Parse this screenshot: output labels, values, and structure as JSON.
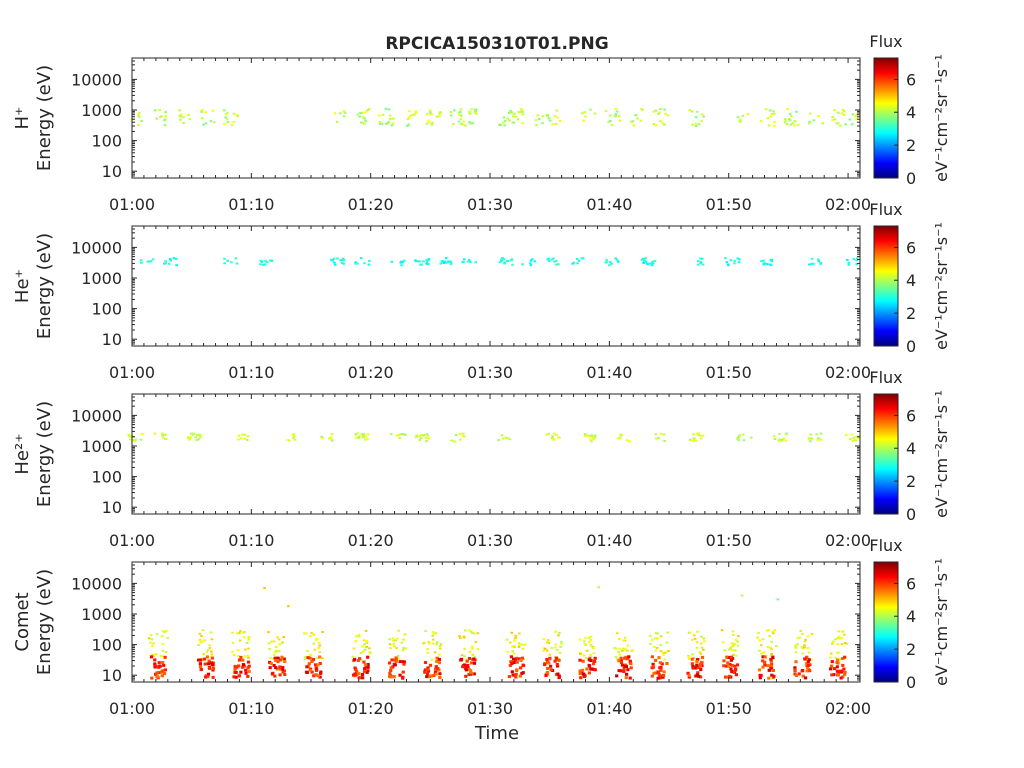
{
  "figure": {
    "title": "RPCICA150310T01.PNG",
    "xlabel": "Time"
  },
  "colorbar": {
    "label": "Flux",
    "units": "eV⁻¹cm⁻²sr⁻¹s⁻¹",
    "ticks": [
      "0",
      "2",
      "4",
      "6"
    ],
    "range": [
      0,
      7.3
    ],
    "colormap": "jet",
    "colors": [
      "#00007f",
      "#0000ff",
      "#007fff",
      "#00ffff",
      "#7fff7f",
      "#ffff00",
      "#ff7f00",
      "#ff0000",
      "#7f0000"
    ]
  },
  "chart_data": [
    {
      "type": "heatmap",
      "species": "H+",
      "ylabel_species": "H⁺",
      "ylabel": "Energy (eV)",
      "ylog": true,
      "ylim": [
        6,
        50000
      ],
      "yticks": [
        "10",
        "100",
        "1000",
        "10000"
      ],
      "xlim": [
        "01:00",
        "02:01"
      ],
      "xticks": [
        "01:00",
        "01:10",
        "01:20",
        "01:30",
        "01:40",
        "01:50",
        "02:00"
      ],
      "bands": [
        {
          "energy_range": [
            300,
            1100
          ],
          "flux_range": [
            3.6,
            4.6
          ],
          "times": [
            "01:00",
            "01:02",
            "01:04",
            "01:06",
            "01:08",
            "01:17",
            "01:19",
            "01:21",
            "01:23",
            "01:25",
            "01:27",
            "01:28",
            "01:31",
            "01:32",
            "01:34",
            "01:35",
            "01:38",
            "01:40",
            "01:42",
            "01:44",
            "01:47",
            "01:51",
            "01:53",
            "01:55",
            "01:57",
            "01:59",
            "02:00"
          ]
        }
      ]
    },
    {
      "type": "heatmap",
      "species": "He+",
      "ylabel_species": "He⁺",
      "ylabel": "Energy (eV)",
      "ylog": true,
      "ylim": [
        6,
        50000
      ],
      "yticks": [
        "10",
        "100",
        "1000",
        "10000"
      ],
      "xlim": [
        "01:00",
        "02:01"
      ],
      "xticks": [
        "01:00",
        "01:10",
        "01:20",
        "01:30",
        "01:40",
        "01:50",
        "02:00"
      ],
      "bands": [
        {
          "energy_range": [
            2600,
            4500
          ],
          "flux_range": [
            2.6,
            3.2
          ],
          "times": [
            "01:01",
            "01:03",
            "01:08",
            "01:11",
            "01:17",
            "01:19",
            "01:22",
            "01:24",
            "01:26",
            "01:28",
            "01:31",
            "01:33",
            "01:35",
            "01:37",
            "01:40",
            "01:43",
            "01:47",
            "01:50",
            "01:53",
            "01:57",
            "02:00"
          ]
        }
      ]
    },
    {
      "type": "heatmap",
      "species": "He2+",
      "ylabel_species": "He²⁺",
      "ylabel": "Energy (eV)",
      "ylog": true,
      "ylim": [
        6,
        50000
      ],
      "yticks": [
        "10",
        "100",
        "1000",
        "10000"
      ],
      "xlim": [
        "01:00",
        "02:01"
      ],
      "xticks": [
        "01:00",
        "01:10",
        "01:20",
        "01:30",
        "01:40",
        "01:50",
        "02:00"
      ],
      "bands": [
        {
          "energy_range": [
            1400,
            2600
          ],
          "flux_range": [
            3.8,
            4.6
          ],
          "times": [
            "01:00",
            "01:02",
            "01:05",
            "01:09",
            "01:13",
            "01:16",
            "01:19",
            "01:22",
            "01:24",
            "01:27",
            "01:31",
            "01:35",
            "01:38",
            "01:41",
            "01:44",
            "01:47",
            "01:51",
            "01:54",
            "01:57",
            "02:00"
          ]
        }
      ]
    },
    {
      "type": "heatmap",
      "species": "Comet",
      "ylabel_species": "Comet",
      "ylabel": "Energy (eV)",
      "ylog": true,
      "ylim": [
        6,
        50000
      ],
      "yticks": [
        "10",
        "100",
        "1000",
        "10000"
      ],
      "xlim": [
        "01:00",
        "02:01"
      ],
      "xticks": [
        "01:00",
        "01:10",
        "01:20",
        "01:30",
        "01:40",
        "01:50",
        "02:00"
      ],
      "bursts": {
        "times": [
          "01:02",
          "01:06",
          "01:09",
          "01:12",
          "01:15",
          "01:19",
          "01:22",
          "01:25",
          "01:28",
          "01:32",
          "01:35",
          "01:38",
          "01:41",
          "01:44",
          "01:47",
          "01:50",
          "01:53",
          "01:56",
          "01:59"
        ],
        "core_energy_range": [
          8,
          40
        ],
        "core_flux_range": [
          5.5,
          6.8
        ],
        "halo_energy_range": [
          30,
          300
        ],
        "halo_flux_range": [
          4.0,
          5.0
        ]
      },
      "isolated": [
        {
          "time": "01:11",
          "energy": 7000,
          "flux": 5.0
        },
        {
          "time": "01:13",
          "energy": 1800,
          "flux": 5.0
        },
        {
          "time": "01:39",
          "energy": 7500,
          "flux": 4.0
        },
        {
          "time": "01:51",
          "energy": 4000,
          "flux": 4.0
        },
        {
          "time": "01:54",
          "energy": 3000,
          "flux": 3.5
        }
      ]
    }
  ]
}
